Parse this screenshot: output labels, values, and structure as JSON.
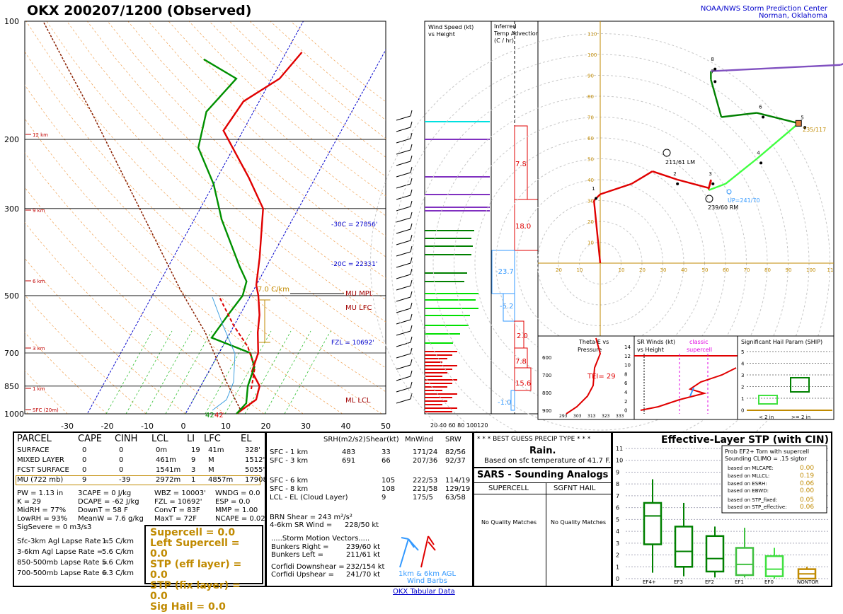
{
  "header": {
    "title": "OKX   200207/1200  (Observed)",
    "credit_line1": "NOAA/NWS Storm Prediction Center",
    "credit_line2": "Norman, Oklahoma"
  },
  "skewt": {
    "pressure_ticks": [
      "100",
      "200",
      "300",
      "500",
      "700",
      "850",
      "1000"
    ],
    "temp_ticks": [
      "-30",
      "-20",
      "-10",
      "0",
      "10",
      "20",
      "30",
      "40",
      "50"
    ],
    "height_labels": [
      "12 km",
      "9 km",
      "6 km",
      "3 km",
      "1 km",
      "SFC (20m)"
    ],
    "annotations": {
      "m30c": "-30C = 27856'",
      "m20c": "-20C = 22331'",
      "fzl": "FZL = 10692'",
      "mu_mpl": "MU MPL",
      "mu_lfc": "MU LFC",
      "ml_lcl": "ML LCL",
      "lapse": "7.0 C/km",
      "sfc_t": "42",
      "sfc_td": "42"
    }
  },
  "wind_speed": {
    "title1": "Wind Speed (kt)",
    "title2": "vs Height",
    "axis": "20 40 60 80 100120"
  },
  "temp_adv": {
    "title1": "Inferred",
    "title2": "Temp Advection",
    "title3": "(C / hr)",
    "values": [
      "7.8",
      "18.0",
      "-23.7",
      "-5.2",
      "2.0",
      "7.8",
      "15.6",
      "-1.0"
    ]
  },
  "hodograph": {
    "ticks_x": [
      "20",
      "10",
      "10",
      "20",
      "30",
      "40",
      "50",
      "60",
      "70",
      "80",
      "90",
      "100",
      "11"
    ],
    "ticks_y": [
      "110",
      "100",
      "90",
      "80",
      "70",
      "60",
      "50",
      "40",
      "30",
      "20",
      "10"
    ],
    "labels": {
      "lm": "211/61 LM",
      "rm": "239/60 RM",
      "up": "UP=241/70",
      "sm": "235/117",
      "k1": "1",
      "k2": "2",
      "k3": "3",
      "k4": "4",
      "k5": "5",
      "k6": "6",
      "k7": "7",
      "k8": "8"
    }
  },
  "theta": {
    "title1": "Theta-E vs",
    "title2": "Pressure",
    "te": "TEI=  29",
    "p": [
      "600",
      "700",
      "800",
      "900"
    ],
    "x": [
      "293",
      "303",
      "313",
      "323",
      "333"
    ]
  },
  "srwind": {
    "title1": "SR Winds (kt)",
    "title2": "vs Height",
    "classic1": "classic",
    "classic2": "supercell",
    "h": [
      "14",
      "12",
      "10",
      "8",
      "6",
      "4",
      "2",
      "0"
    ],
    "x": [
      "0",
      "40",
      "80"
    ]
  },
  "ship": {
    "title": "Significant Hail Param (SHIP)",
    "y": [
      "5",
      "4",
      "3",
      "2",
      "1",
      "0"
    ],
    "x1": "< 2 in",
    "x2": ">= 2 in"
  },
  "parcel": {
    "headers": [
      "PARCEL",
      "CAPE",
      "CINH",
      "LCL",
      "LI",
      "LFC",
      "EL"
    ],
    "rows": [
      [
        "SURFACE",
        "0",
        "0",
        "0m",
        "19",
        "41m",
        "328'"
      ],
      [
        "MIXED LAYER",
        "0",
        "0",
        "461m",
        "9",
        "M",
        "1512'"
      ],
      [
        "FCST SURFACE",
        "0",
        "0",
        "1541m",
        "3",
        "M",
        "5055'"
      ],
      [
        "MU   (722 mb)",
        "9",
        "-39",
        "2972m",
        "1",
        "4857m",
        "17908'"
      ]
    ],
    "indices": [
      [
        "PW = 1.13 in",
        "3CAPE = 0 J/kg",
        "WBZ = 10003'",
        "WNDG = 0.0"
      ],
      [
        "K = 29",
        "DCAPE = -62 J/kg",
        "FZL = 10692'",
        "ESP = 0.0"
      ],
      [
        "MidRH = 77%",
        "DownT = 58 F",
        "ConvT = 83F",
        "MMP = 1.00"
      ],
      [
        "LowRH = 93%",
        "MeanW = 7.6 g/kg",
        "MaxT = 72F",
        "NCAPE = 0.02"
      ],
      [
        "SigSevere = 0 m3/s3",
        "",
        "",
        ""
      ]
    ],
    "lapse": [
      [
        "Sfc-3km Agl Lapse Rate =",
        "1.5 C/km"
      ],
      [
        "3-6km Agl Lapse Rate =",
        "5.6 C/km"
      ],
      [
        "850-500mb Lapse Rate =",
        "5.6 C/km"
      ],
      [
        "700-500mb Lapse Rate =",
        "6.3 C/km"
      ]
    ],
    "composite": [
      "Supercell = 0.0",
      "Left Supercell = 0.0",
      "STP (eff layer) = 0.0",
      "STP (fix layer) = 0.0",
      "Sig Hail = 0.0"
    ]
  },
  "kinematic": {
    "headers": [
      "SRH(m2/s2)",
      "Shear(kt)",
      "MnWind",
      "SRW"
    ],
    "rows": [
      [
        "SFC - 1 km",
        "483",
        "33",
        "171/24",
        "82/56"
      ],
      [
        "SFC - 3 km",
        "691",
        "66",
        "207/36",
        "92/37"
      ],
      [
        "SFC - 6 km",
        "",
        "105",
        "222/53",
        "114/19"
      ],
      [
        "SFC - 8 km",
        "",
        "108",
        "221/58",
        "129/19"
      ],
      [
        "LCL - EL (Cloud Layer)",
        "",
        "9",
        "175/5",
        "63/58"
      ]
    ],
    "brn": [
      "BRN Shear =  243 m²/s²",
      "4-6km SR Wind =",
      "228/50 kt"
    ],
    "motion_title": ".....Storm Motion Vectors.....",
    "motion": [
      [
        "Bunkers Right =",
        "239/60 kt"
      ],
      [
        "Bunkers Left =",
        "211/61 kt"
      ],
      [
        "Corfidi Downshear =",
        "232/154 kt"
      ],
      [
        "Corfidi Upshear =",
        "241/70 kt"
      ]
    ],
    "barb_legend1": "1km & 6km AGL",
    "barb_legend2": "Wind Barbs"
  },
  "precip": {
    "title": "* * * BEST GUESS PRECIP TYPE * * *",
    "type": "Rain.",
    "note": "Based on sfc temperature of 41.7 F."
  },
  "sars": {
    "title": "SARS - Sounding Analogs",
    "col1": "SUPERCELL",
    "col2": "SGFNT HAIL",
    "none1": "No Quality Matches",
    "none2": "No Quality Matches"
  },
  "stp": {
    "title": "Effective-Layer STP (with CIN)",
    "prob1": "Prob EF2+ Torn with supercell",
    "prob2": "Sounding CLIMO = .15 sigtor",
    "rows": [
      [
        "based on MLCAPE:",
        "0.00"
      ],
      [
        "based on MLLCL:",
        "0.19"
      ],
      [
        "based on ESRH:",
        "0.06"
      ],
      [
        "based on EBWD:",
        "0.00"
      ],
      [
        "based on STP_fixed:",
        "0.05"
      ],
      [
        "based on STP_effective:",
        "0.06"
      ]
    ],
    "cats": [
      "EF4+",
      "EF3",
      "EF2",
      "EF1",
      "EF0",
      "NONTOR"
    ],
    "y": [
      "11",
      "10",
      "9",
      "8",
      "7",
      "6",
      "5",
      "4",
      "3",
      "2",
      "1",
      "0"
    ]
  },
  "footer": "OKX Tabular Data",
  "chart_data": [
    {
      "type": "line",
      "title": "OKX   200207/1200  (Observed)",
      "xlabel": "",
      "ylabel": "",
      "xlim": [
        -30,
        50
      ],
      "ylim": [
        1000,
        100
      ],
      "yscale": "log",
      "series": [
        {
          "name": "",
          "color": "#e00000",
          "points": [
            [
              13,
              1000
            ],
            [
              16,
              920
            ],
            [
              15,
              850
            ],
            [
              11,
              780
            ],
            [
              10,
              700
            ],
            [
              7,
              620
            ],
            [
              5,
              560
            ],
            [
              2,
              500
            ],
            [
              0,
              470
            ],
            [
              -3,
              400
            ],
            [
              -9,
              300
            ],
            [
              -17,
              250
            ],
            [
              -30,
              190
            ],
            [
              -29,
              160
            ],
            [
              -23,
              140
            ],
            [
              -21,
              120
            ]
          ]
        },
        {
          "name": "",
          "color": "#009000",
          "points": [
            [
              13,
              1000
            ],
            [
              14,
              940
            ],
            [
              12,
              850
            ],
            [
              11,
              760
            ],
            [
              8,
              700
            ],
            [
              -4,
              640
            ],
            [
              -3,
              560
            ],
            [
              -2,
              500
            ],
            [
              -3,
              460
            ],
            [
              -7,
              420
            ],
            [
              -18,
              320
            ],
            [
              -25,
              260
            ],
            [
              -34,
              210
            ],
            [
              -37,
              170
            ],
            [
              -34,
              140
            ],
            [
              -45,
              125
            ]
          ]
        }
      ]
    },
    {
      "type": "line",
      "title": "",
      "xlim": [
        -20,
        110
      ],
      "ylim": [
        0,
        110
      ],
      "series": [
        {
          "name": "",
          "points": [
            [
              0,
              0
            ],
            [
              -3,
              30
            ],
            [
              0,
              33
            ],
            [
              15,
              38
            ],
            [
              25,
              44
            ],
            [
              37,
              40
            ],
            [
              52,
              36
            ],
            [
              53,
              39
            ],
            [
              53,
              40
            ],
            [
              52,
              36
            ],
            [
              52,
              35
            ],
            [
              60,
              38
            ],
            [
              75,
              50
            ],
            [
              95,
              67
            ],
            [
              75,
              72
            ],
            [
              58,
              70
            ],
            [
              53,
              88
            ],
            [
              53,
              92
            ],
            [
              115,
              95
            ],
            [
              135,
              102
            ]
          ]
        }
      ]
    }
  ]
}
